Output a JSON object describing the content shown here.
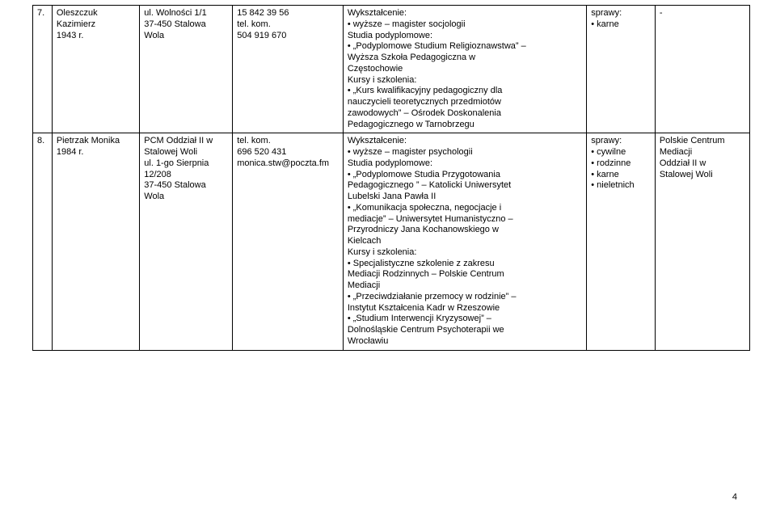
{
  "rows": [
    {
      "num": "7.",
      "name_l1": "Oleszczuk",
      "name_l2": "Kazimierz",
      "name_l3": "1943 r.",
      "addr_l1": "ul. Wolności 1/1",
      "addr_l2": "37-450 Stalowa",
      "addr_l3": "Wola",
      "tel_l1": "15 842 39 56",
      "tel_l2": "tel. kom.",
      "tel_l3": "504 919 670",
      "info_h1": "Wykształcenie:",
      "info_b1": "• wyższe – magister socjologii",
      "info_h2": "Studia podyplomowe:",
      "info_b2a": "• „Podyplomowe Studium Religioznawstwa” –",
      "info_b2b": "Wyższa Szkoła Pedagogiczna w",
      "info_b2c": "Częstochowie",
      "info_h3": "Kursy i szkolenia:",
      "info_b3a": "• „Kurs kwalifikacyjny pedagogiczny dla",
      "info_b3b": "nauczycieli teoretycznych przedmiotów",
      "info_b3c": "zawodowych” – Ośrodek Doskonalenia",
      "info_b3d": "Pedagogicznego w Tarnobrzegu",
      "spr_l1": "sprawy:",
      "spr_l2": "• karne",
      "last": "-"
    },
    {
      "num": "8.",
      "name_l1": "Pietrzak Monika",
      "name_l2": "1984 r.",
      "addr_l1": "PCM Oddział II w",
      "addr_l2": "Stalowej Woli",
      "addr_l3": "ul. 1-go Sierpnia",
      "addr_l4": "12/208",
      "addr_l5": "37-450 Stalowa",
      "addr_l6": "Wola",
      "tel_l1": "tel. kom.",
      "tel_l2": "696 520 431",
      "tel_l3": "monica.stw@poczta.fm",
      "info_h1": "Wykształcenie:",
      "info_b1": "• wyższe – magister psychologii",
      "info_h2": "Studia podyplomowe:",
      "info_b2a": "• „Podyplomowe Studia Przygotowania",
      "info_b2b": "Pedagogicznego ” – Katolicki Uniwersytet",
      "info_b2c": "Lubelski Jana Pawła II",
      "info_b2d": "• „Komunikacja społeczna, negocjacje i",
      "info_b2e": "mediacje” – Uniwersytet Humanistyczno –",
      "info_b2f": "Przyrodniczy Jana Kochanowskiego w",
      "info_b2g": "Kielcach",
      "info_h3": " Kursy i szkolenia:",
      "info_b3a": "• Specjalistyczne szkolenie z zakresu",
      "info_b3b": "Mediacji Rodzinnych – Polskie Centrum",
      "info_b3c": "Mediacji",
      "info_b3d": "• „Przeciwdziałanie przemocy w rodzinie” –",
      "info_b3e": "Instytut Kształcenia Kadr w Rzeszowie",
      "info_b3f": "• „Studium Interwencji Kryzysowej” –",
      "info_b3g": "Dolnośląskie Centrum Psychoterapii we",
      "info_b3h": "Wrocławiu",
      "spr_l1": "sprawy:",
      "spr_l2": "• cywilne",
      "spr_l3": "• rodzinne",
      "spr_l4": "• karne",
      "spr_l5": "• nieletnich",
      "last_l1": "Polskie Centrum",
      "last_l2": "Mediacji",
      "last_l3": "Oddział II w",
      "last_l4": "Stalowej Woli"
    }
  ],
  "pageNumber": "4"
}
